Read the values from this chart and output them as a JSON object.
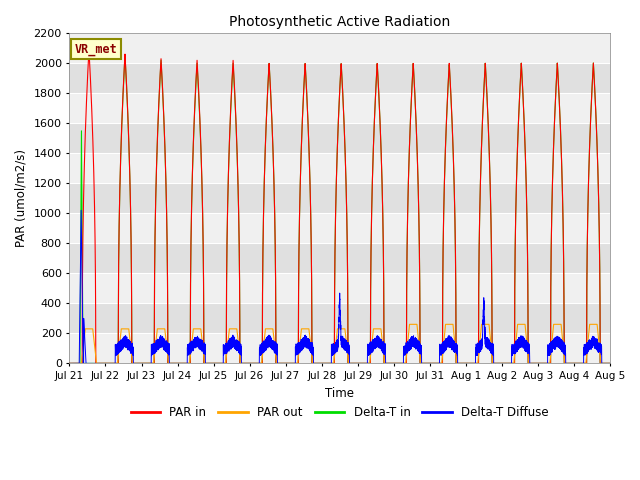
{
  "title": "Photosynthetic Active Radiation",
  "ylabel": "PAR (umol/m2/s)",
  "xlabel": "Time",
  "legend_label": "VR_met",
  "series_labels": [
    "PAR in",
    "PAR out",
    "Delta-T in",
    "Delta-T Diffuse"
  ],
  "series_colors": [
    "red",
    "orange",
    "#00cc00",
    "blue"
  ],
  "ylim": [
    0,
    2200
  ],
  "yticks": [
    0,
    200,
    400,
    600,
    800,
    1000,
    1200,
    1400,
    1600,
    1800,
    2000,
    2200
  ],
  "xtick_labels": [
    "Jul 21",
    "Jul 22",
    "Jul 23",
    "Jul 24",
    "Jul 25",
    "Jul 26",
    "Jul 27",
    "Jul 28",
    "Jul 29",
    "Jul 30",
    "Jul 31",
    "Aug 1",
    "Aug 2",
    "Aug 3",
    "Aug 4",
    "Aug 5"
  ],
  "xtick_positions": [
    0,
    24,
    48,
    72,
    96,
    120,
    144,
    168,
    192,
    216,
    240,
    264,
    288,
    312,
    336,
    360
  ],
  "bg_color": "#d8d8d8",
  "stripe_color": "#e8e8e8",
  "white_stripe": "#f0f0f0"
}
